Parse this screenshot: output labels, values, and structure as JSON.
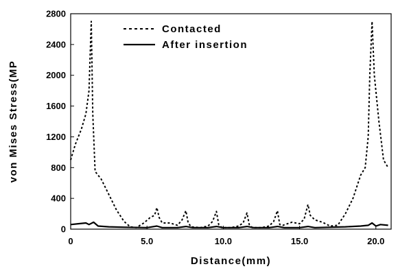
{
  "chart_data": {
    "type": "line",
    "title": "",
    "xlabel": "Distance(mm)",
    "ylabel": "von Mises Stress(MP",
    "xlim": [
      0,
      21
    ],
    "ylim": [
      0,
      2800
    ],
    "x_ticks": [
      0,
      5,
      10,
      15,
      20
    ],
    "x_tick_labels": [
      "0",
      "5.0",
      "10.0",
      "15.0",
      "20.0"
    ],
    "y_ticks": [
      0,
      400,
      800,
      1200,
      1600,
      2000,
      2400,
      2800
    ],
    "y_tick_labels": [
      "0",
      "400",
      "800",
      "1200",
      "1600",
      "2000",
      "2400",
      "2800"
    ],
    "grid": false,
    "legend_position": "top-center",
    "series": [
      {
        "name": "Contacted",
        "style": "dotted",
        "color": "#000000",
        "x": [
          0,
          0.3,
          0.7,
          1.0,
          1.2,
          1.35,
          1.45,
          1.6,
          2.0,
          2.5,
          3.0,
          3.5,
          3.9,
          4.3,
          4.8,
          5.2,
          5.5,
          5.65,
          5.8,
          6.0,
          6.5,
          7.0,
          7.3,
          7.55,
          7.7,
          7.9,
          8.5,
          9.0,
          9.3,
          9.55,
          9.7,
          9.9,
          10.5,
          11.0,
          11.3,
          11.55,
          11.7,
          11.9,
          12.5,
          13.0,
          13.3,
          13.55,
          13.7,
          13.9,
          14.5,
          15.0,
          15.3,
          15.55,
          15.7,
          16.0,
          16.5,
          17.0,
          17.5,
          18.0,
          18.5,
          19.0,
          19.3,
          19.5,
          19.6,
          19.75,
          19.9,
          20.2,
          20.5,
          20.8
        ],
        "y": [
          900,
          1100,
          1300,
          1500,
          1800,
          2700,
          1500,
          750,
          650,
          450,
          250,
          100,
          30,
          20,
          80,
          150,
          180,
          280,
          150,
          80,
          80,
          50,
          120,
          240,
          80,
          30,
          20,
          40,
          100,
          230,
          60,
          20,
          20,
          40,
          80,
          210,
          60,
          20,
          20,
          40,
          100,
          240,
          60,
          50,
          90,
          70,
          130,
          320,
          180,
          120,
          90,
          40,
          50,
          200,
          400,
          700,
          800,
          1200,
          2000,
          2700,
          2000,
          1400,
          900,
          800
        ]
      },
      {
        "name": "After insertion",
        "style": "solid",
        "color": "#000000",
        "x": [
          0,
          0.5,
          1.0,
          1.2,
          1.5,
          1.8,
          2.5,
          3.5,
          5.0,
          5.65,
          6.0,
          7.0,
          7.55,
          8.0,
          9.0,
          9.55,
          10.0,
          11.0,
          11.55,
          12.0,
          13.0,
          13.55,
          14.0,
          15.0,
          15.55,
          16.0,
          17.0,
          18.0,
          19.0,
          19.5,
          19.75,
          20.0,
          20.3,
          20.8
        ],
        "y": [
          60,
          70,
          80,
          60,
          90,
          40,
          30,
          25,
          20,
          40,
          20,
          20,
          35,
          20,
          20,
          35,
          20,
          20,
          35,
          20,
          20,
          35,
          20,
          20,
          35,
          20,
          25,
          30,
          40,
          50,
          80,
          40,
          60,
          50
        ]
      }
    ]
  }
}
